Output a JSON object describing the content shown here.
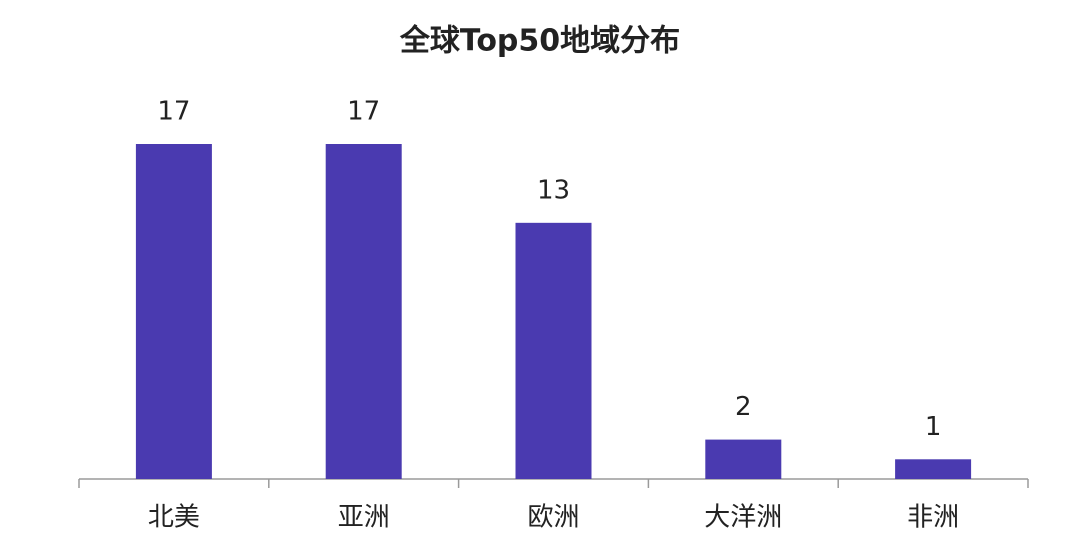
{
  "chart_data": {
    "type": "bar",
    "title": "全球Top50地域分布",
    "categories": [
      "北美",
      "亚洲",
      "欧洲",
      "大洋洲",
      "非洲"
    ],
    "values": [
      17,
      17,
      13,
      2,
      1
    ],
    "color": "#4a3ab0"
  }
}
